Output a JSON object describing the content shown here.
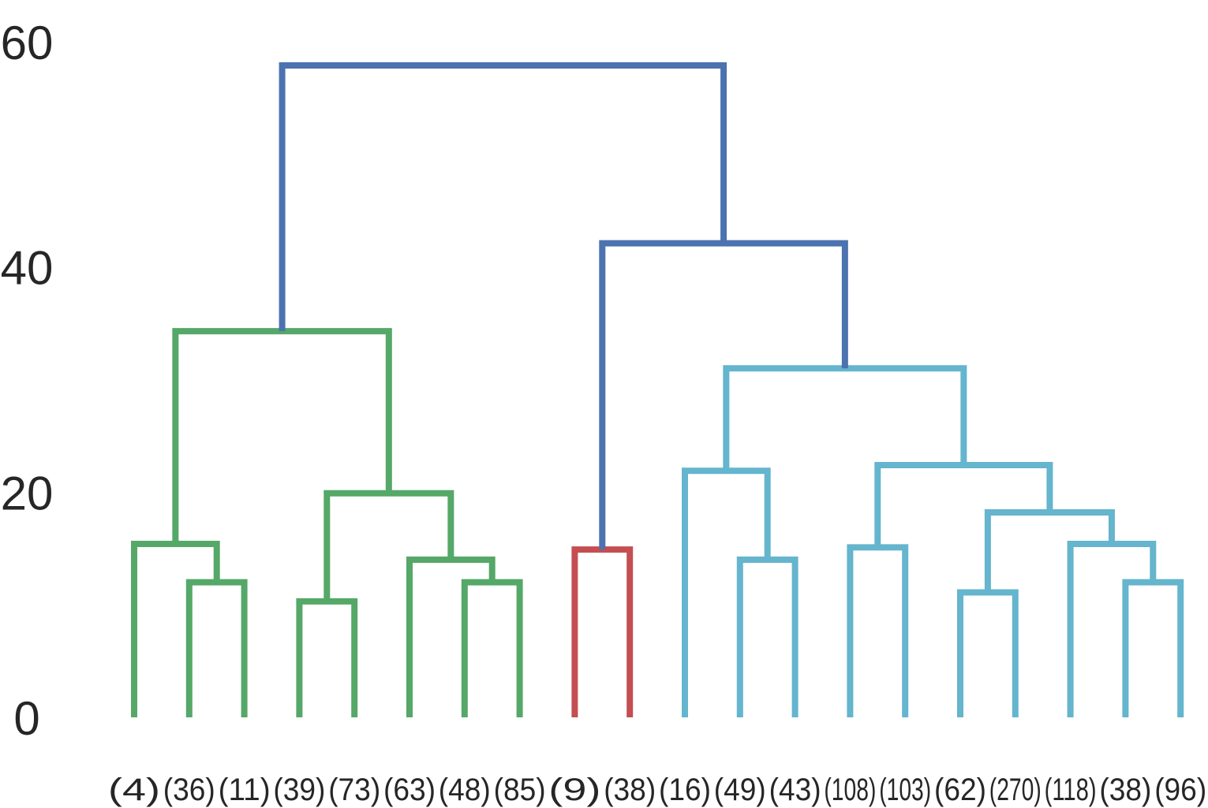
{
  "chart_data": {
    "type": "dendrogram",
    "title": "",
    "xlabel": "",
    "ylabel": "",
    "ylim": [
      0,
      60
    ],
    "yticks": [
      0,
      20,
      40,
      60
    ],
    "ytick_labels": [
      "0",
      "20",
      "40",
      "60"
    ],
    "grid": false,
    "legend": "none",
    "leaves": [
      "(4)",
      "(36)",
      "(11)",
      "(39)",
      "(73)",
      "(63)",
      "(48)",
      "(85)",
      "(9)",
      "(38)",
      "(16)",
      "(49)",
      "(43)",
      "(108)",
      "(103)",
      "(62)",
      "(270)",
      "(118)",
      "(38)",
      "(96)"
    ],
    "colors": {
      "green": "#55a868",
      "red": "#c44e52",
      "cyan": "#64b5cd",
      "blue": "#4c72b0"
    },
    "merges": [
      {
        "id": "m1",
        "left": "L1",
        "right": "L2",
        "height": 12.0,
        "color": "green"
      },
      {
        "id": "m2",
        "left": "L0",
        "right": "m1",
        "height": 15.4,
        "color": "green"
      },
      {
        "id": "m3",
        "left": "L3",
        "right": "L4",
        "height": 10.3,
        "color": "green"
      },
      {
        "id": "m4",
        "left": "L6",
        "right": "L7",
        "height": 12.0,
        "color": "green"
      },
      {
        "id": "m5",
        "left": "L5",
        "right": "m4",
        "height": 14.0,
        "color": "green"
      },
      {
        "id": "m6",
        "left": "m3",
        "right": "m5",
        "height": 19.9,
        "color": "green"
      },
      {
        "id": "m7",
        "left": "m2",
        "right": "m6",
        "height": 34.3,
        "color": "green"
      },
      {
        "id": "m8",
        "left": "L8",
        "right": "L9",
        "height": 14.9,
        "color": "red"
      },
      {
        "id": "m9",
        "left": "L11",
        "right": "L12",
        "height": 14.0,
        "color": "cyan"
      },
      {
        "id": "m10",
        "left": "L10",
        "right": "m9",
        "height": 21.9,
        "color": "cyan"
      },
      {
        "id": "m11",
        "left": "L13",
        "right": "L14",
        "height": 15.1,
        "color": "cyan"
      },
      {
        "id": "m12",
        "left": "L15",
        "right": "L16",
        "height": 11.1,
        "color": "cyan"
      },
      {
        "id": "m13",
        "left": "L18",
        "right": "L19",
        "height": 12.0,
        "color": "cyan"
      },
      {
        "id": "m14",
        "left": "L17",
        "right": "m13",
        "height": 15.4,
        "color": "cyan"
      },
      {
        "id": "m15",
        "left": "m12",
        "right": "m14",
        "height": 18.2,
        "color": "cyan"
      },
      {
        "id": "m16",
        "left": "m11",
        "right": "m15",
        "height": 22.4,
        "color": "cyan"
      },
      {
        "id": "m17",
        "left": "m10",
        "right": "m16",
        "height": 31.0,
        "color": "cyan"
      },
      {
        "id": "m18",
        "left": "m8",
        "right": "m17",
        "height": 42.1,
        "color": "blue"
      },
      {
        "id": "m19",
        "left": "m7",
        "right": "m18",
        "height": 57.9,
        "color": "blue"
      }
    ]
  }
}
